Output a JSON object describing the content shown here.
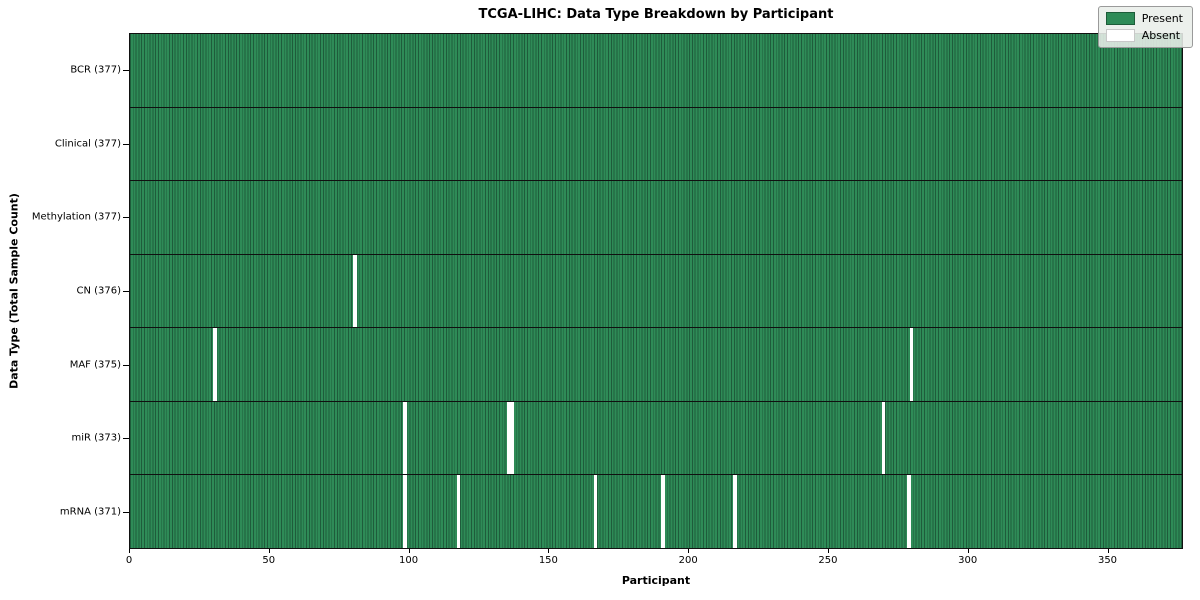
{
  "title": "TCGA-LIHC: Data Type Breakdown by Participant",
  "xlabel": "Participant",
  "ylabel": "Data Type (Total Sample Count)",
  "legend": {
    "present_label": "Present",
    "absent_label": "Absent",
    "position": "upper right"
  },
  "colors": {
    "present": "#2e8b57",
    "present_stripe": "#1e5c3b",
    "absent": "#ffffff",
    "axis": "#000000",
    "legend_bg": "#e9eee9"
  },
  "chart_data": {
    "type": "heatmap",
    "title": "TCGA-LIHC: Data Type Breakdown by Participant",
    "xlabel": "Participant",
    "ylabel": "Data Type (Total Sample Count)",
    "x_range": [
      0,
      377
    ],
    "x_ticks": [
      0,
      50,
      100,
      150,
      200,
      250,
      300,
      350
    ],
    "total_participants": 377,
    "grid": false,
    "legend_entries": [
      "Present",
      "Absent"
    ],
    "legend_position": "upper right",
    "rows": [
      {
        "label": "BCR (377)",
        "name": "BCR",
        "present_count": 377,
        "absent_participants": []
      },
      {
        "label": "Clinical (377)",
        "name": "Clinical",
        "present_count": 377,
        "absent_participants": []
      },
      {
        "label": "Methylation (377)",
        "name": "Methylation",
        "present_count": 377,
        "absent_participants": []
      },
      {
        "label": "CN (376)",
        "name": "CN",
        "present_count": 376,
        "absent_participants": [
          80
        ]
      },
      {
        "label": "MAF (375)",
        "name": "MAF",
        "present_count": 375,
        "absent_participants": [
          30,
          279
        ]
      },
      {
        "label": "miR (373)",
        "name": "miR",
        "present_count": 373,
        "absent_participants": [
          98,
          135,
          136,
          269
        ]
      },
      {
        "label": "mRNA (371)",
        "name": "mRNA",
        "present_count": 371,
        "absent_participants": [
          98,
          117,
          166,
          190,
          216,
          278
        ]
      }
    ]
  }
}
